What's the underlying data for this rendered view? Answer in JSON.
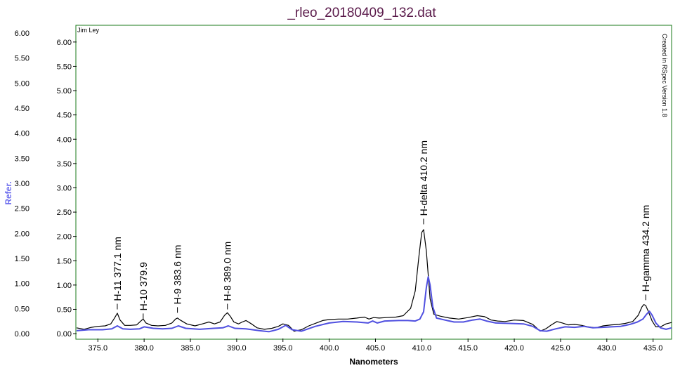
{
  "chart_data": {
    "type": "line",
    "title": "_rleo_20180409_132.dat",
    "author": "Jim Ley",
    "side_note": "Created in RSpec Version 1.8",
    "xlabel": "Nanometers",
    "ylabel": "Refer.",
    "xlim": [
      372.7,
      437.0
    ],
    "ylim": [
      0.0,
      6.0
    ],
    "plot_ylim": [
      -0.1,
      6.33
    ],
    "x_ticks": [
      "375.0",
      "380.0",
      "385.0",
      "390.0",
      "395.0",
      "400.0",
      "405.0",
      "410.0",
      "415.0",
      "420.0",
      "425.0",
      "430.0",
      "435.0"
    ],
    "y_ticks_outer": [
      "6.00",
      "5.50",
      "5.00",
      "4.50",
      "4.00",
      "3.50",
      "3.00",
      "2.50",
      "2.00",
      "1.50",
      "1.00",
      "0.50",
      "0.00"
    ],
    "y_ticks_inner": [
      "6.00",
      "5.50",
      "5.00",
      "4.50",
      "4.00",
      "3.50",
      "3.00",
      "2.50",
      "2.00",
      "1.50",
      "1.00",
      "0.50",
      "0.00"
    ],
    "colors": {
      "frame": "#1a7a1a",
      "title": "#5a1a4a",
      "ylabel": "#6a6aee",
      "series_black": "#000000",
      "series_blue": "#5050e0"
    },
    "annotations": [
      {
        "label": "H-11 377.1 nm",
        "x": 377.1,
        "y": 0.47
      },
      {
        "label": "H-10 379.9",
        "x": 379.9,
        "y": 0.27
      },
      {
        "label": "H-9 383.6 nm",
        "x": 383.6,
        "y": 0.4
      },
      {
        "label": "H-8 389.0 nm",
        "x": 389.0,
        "y": 0.47
      },
      {
        "label": "H-delta 410.2 nm",
        "x": 410.2,
        "y": 2.22
      },
      {
        "label": "H-gamma 434.2 nm",
        "x": 434.2,
        "y": 0.66
      }
    ],
    "series": [
      {
        "color": "#000000",
        "width": 1.2,
        "x": [
          372.7,
          373.5,
          374.3,
          375.0,
          375.8,
          376.4,
          376.8,
          377.1,
          377.4,
          377.9,
          378.5,
          379.2,
          379.7,
          379.9,
          380.2,
          380.8,
          381.5,
          382.3,
          383.0,
          383.4,
          383.6,
          383.9,
          384.6,
          385.5,
          386.3,
          387.0,
          387.6,
          388.2,
          388.7,
          389.0,
          389.3,
          389.7,
          390.2,
          390.6,
          391.0,
          391.6,
          392.2,
          393.0,
          393.8,
          394.5,
          395.0,
          395.6,
          396.2,
          397.0,
          397.8,
          398.6,
          399.3,
          400.0,
          401.0,
          402.0,
          403.0,
          403.8,
          404.3,
          404.8,
          405.4,
          406.2,
          407.2,
          408.0,
          408.8,
          409.3,
          409.7,
          410.0,
          410.2,
          410.5,
          410.9,
          411.3,
          412.0,
          413.0,
          414.0,
          415.0,
          416.0,
          416.8,
          417.5,
          418.2,
          419.0,
          420.0,
          421.0,
          422.0,
          422.8,
          423.4,
          424.0,
          424.6,
          425.2,
          425.8,
          426.5,
          427.3,
          428.0,
          428.8,
          429.6,
          430.5,
          431.3,
          432.0,
          432.8,
          433.4,
          433.8,
          434.0,
          434.2,
          434.5,
          434.9,
          435.3,
          435.8,
          436.4,
          437.0
        ],
        "y": [
          0.12,
          0.09,
          0.13,
          0.15,
          0.16,
          0.2,
          0.32,
          0.42,
          0.28,
          0.17,
          0.17,
          0.18,
          0.27,
          0.3,
          0.22,
          0.17,
          0.16,
          0.17,
          0.22,
          0.3,
          0.32,
          0.28,
          0.2,
          0.16,
          0.2,
          0.24,
          0.2,
          0.24,
          0.38,
          0.43,
          0.36,
          0.24,
          0.2,
          0.24,
          0.27,
          0.2,
          0.12,
          0.09,
          0.11,
          0.15,
          0.2,
          0.17,
          0.05,
          0.08,
          0.16,
          0.22,
          0.27,
          0.29,
          0.3,
          0.3,
          0.32,
          0.34,
          0.3,
          0.33,
          0.32,
          0.33,
          0.34,
          0.37,
          0.52,
          0.88,
          1.6,
          2.08,
          2.14,
          1.7,
          0.72,
          0.4,
          0.36,
          0.32,
          0.3,
          0.33,
          0.37,
          0.35,
          0.28,
          0.26,
          0.25,
          0.28,
          0.27,
          0.19,
          0.05,
          0.1,
          0.18,
          0.25,
          0.22,
          0.18,
          0.19,
          0.17,
          0.14,
          0.12,
          0.16,
          0.18,
          0.19,
          0.21,
          0.25,
          0.38,
          0.55,
          0.6,
          0.58,
          0.45,
          0.26,
          0.14,
          0.14,
          0.2,
          0.23
        ]
      },
      {
        "color": "#5050e0",
        "width": 2.0,
        "x": [
          372.7,
          374.0,
          375.5,
          376.5,
          377.1,
          377.7,
          378.5,
          379.5,
          380.0,
          381.0,
          382.0,
          383.0,
          383.7,
          384.5,
          386.0,
          387.5,
          388.5,
          389.1,
          389.8,
          391.0,
          392.5,
          393.5,
          394.5,
          395.3,
          396.0,
          397.0,
          398.5,
          400.0,
          401.5,
          403.0,
          404.2,
          404.7,
          405.2,
          406.0,
          407.5,
          408.5,
          409.3,
          409.8,
          410.2,
          410.5,
          410.7,
          410.9,
          411.2,
          411.6,
          412.5,
          413.5,
          414.5,
          415.5,
          416.3,
          417.0,
          418.0,
          419.5,
          421.0,
          422.0,
          422.8,
          423.5,
          424.5,
          425.5,
          426.5,
          427.5,
          428.5,
          429.5,
          430.5,
          431.5,
          432.5,
          433.3,
          433.9,
          434.3,
          434.6,
          434.9,
          435.3,
          435.8,
          436.4,
          437.0
        ],
        "y": [
          0.06,
          0.08,
          0.08,
          0.1,
          0.16,
          0.1,
          0.09,
          0.1,
          0.14,
          0.11,
          0.1,
          0.11,
          0.16,
          0.11,
          0.09,
          0.11,
          0.12,
          0.16,
          0.11,
          0.1,
          0.06,
          0.04,
          0.09,
          0.17,
          0.08,
          0.05,
          0.15,
          0.22,
          0.25,
          0.24,
          0.22,
          0.26,
          0.22,
          0.26,
          0.27,
          0.27,
          0.26,
          0.3,
          0.45,
          0.95,
          1.17,
          1.0,
          0.55,
          0.32,
          0.28,
          0.24,
          0.24,
          0.28,
          0.3,
          0.26,
          0.22,
          0.21,
          0.2,
          0.15,
          0.06,
          0.05,
          0.1,
          0.14,
          0.13,
          0.15,
          0.12,
          0.13,
          0.14,
          0.15,
          0.19,
          0.24,
          0.3,
          0.4,
          0.46,
          0.38,
          0.22,
          0.12,
          0.09,
          0.12
        ]
      }
    ]
  }
}
